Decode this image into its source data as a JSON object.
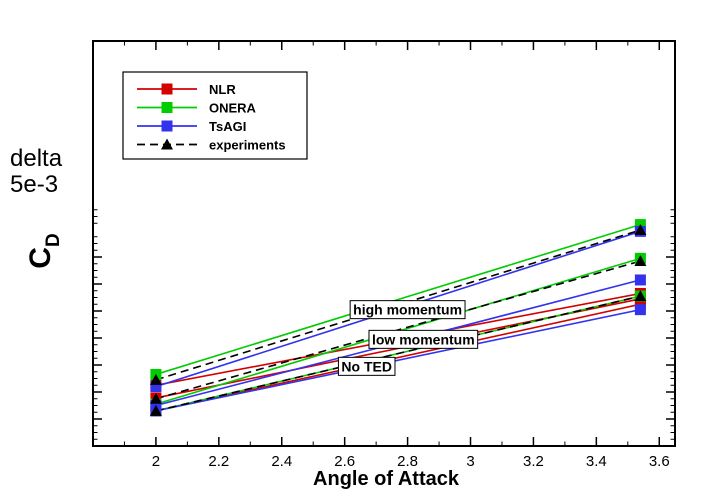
{
  "chart_data": {
    "type": "line",
    "title": "",
    "xlabel": "Angle of Attack",
    "ylabel": "C",
    "ylabel_sub": "D",
    "ylabel_note_1": "delta",
    "ylabel_note_2": "5e-3",
    "xlim": [
      1.8,
      3.65
    ],
    "ylim": [
      -1,
      14
    ],
    "x_ticks": [
      2,
      2.2,
      2.4,
      2.6,
      2.8,
      3,
      3.2,
      3.4,
      3.6
    ],
    "x_tick_labels": [
      "2",
      "2.2",
      "2.4",
      "2.6",
      "2.8",
      "3",
      "3.2",
      "3.4",
      "3.6"
    ],
    "y_unit_note": "y values in units of one major tick interval (delta = 5e-3); y axis has no numeric tick labels",
    "y_ticks": [
      0,
      1,
      2,
      3,
      4,
      5,
      6
    ],
    "grid": false,
    "legend_position": "top-left",
    "series": [
      {
        "name": "NLR",
        "color": "#d40000",
        "marker": "square",
        "dash": "solid",
        "x": [
          2,
          3.54
        ],
        "y": [
          1.25,
          4.65
        ]
      },
      {
        "name": "NLR",
        "color": "#d40000",
        "marker": "square",
        "dash": "solid",
        "x": [
          2,
          3.54
        ],
        "y": [
          0.78,
          4.45
        ]
      },
      {
        "name": "NLR",
        "color": "#d40000",
        "marker": "square",
        "dash": "solid",
        "x": [
          2,
          3.54
        ],
        "y": [
          0.3,
          4.25
        ]
      },
      {
        "name": "ONERA",
        "color": "#00cc00",
        "marker": "square",
        "dash": "solid",
        "x": [
          2,
          3.54
        ],
        "y": [
          1.65,
          7.2
        ]
      },
      {
        "name": "ONERA",
        "color": "#00cc00",
        "marker": "square",
        "dash": "solid",
        "x": [
          2,
          3.54
        ],
        "y": [
          0.55,
          5.95
        ]
      },
      {
        "name": "ONERA",
        "color": "#00cc00",
        "marker": "square",
        "dash": "solid",
        "x": [
          2,
          3.54
        ],
        "y": [
          0.3,
          4.55
        ]
      },
      {
        "name": "TsAGI",
        "color": "#3333ee",
        "marker": "square",
        "dash": "solid",
        "x": [
          2,
          3.54
        ],
        "y": [
          1.2,
          6.95
        ]
      },
      {
        "name": "TsAGI",
        "color": "#3333ee",
        "marker": "square",
        "dash": "solid",
        "x": [
          2,
          3.54
        ],
        "y": [
          0.5,
          5.15
        ]
      },
      {
        "name": "TsAGI",
        "color": "#3333ee",
        "marker": "square",
        "dash": "solid",
        "x": [
          2,
          3.54
        ],
        "y": [
          0.3,
          4.05
        ]
      },
      {
        "name": "experiments",
        "color": "#000000",
        "marker": "triangle",
        "dash": "dashed",
        "x": [
          2,
          3.54
        ],
        "y": [
          1.45,
          7.0
        ]
      },
      {
        "name": "experiments",
        "color": "#000000",
        "marker": "triangle",
        "dash": "dashed",
        "x": [
          2,
          3.54
        ],
        "y": [
          0.75,
          5.85
        ]
      },
      {
        "name": "experiments",
        "color": "#000000",
        "marker": "triangle",
        "dash": "dashed",
        "x": [
          2,
          3.54
        ],
        "y": [
          0.3,
          4.55
        ]
      }
    ],
    "legend": [
      {
        "name": "NLR",
        "color": "#d40000",
        "marker": "square",
        "dash": "solid"
      },
      {
        "name": "ONERA",
        "color": "#00cc00",
        "marker": "square",
        "dash": "solid"
      },
      {
        "name": "TsAGI",
        "color": "#3333ee",
        "marker": "square",
        "dash": "solid"
      },
      {
        "name": "experiments",
        "color": "#000000",
        "marker": "triangle",
        "dash": "dashed"
      }
    ],
    "annotations": [
      {
        "text": "high momentum",
        "x": 2.8,
        "y": 4.05
      },
      {
        "text": "low momentum",
        "x": 2.85,
        "y": 2.95
      },
      {
        "text": "No TED",
        "x": 2.67,
        "y": 1.95
      }
    ]
  }
}
